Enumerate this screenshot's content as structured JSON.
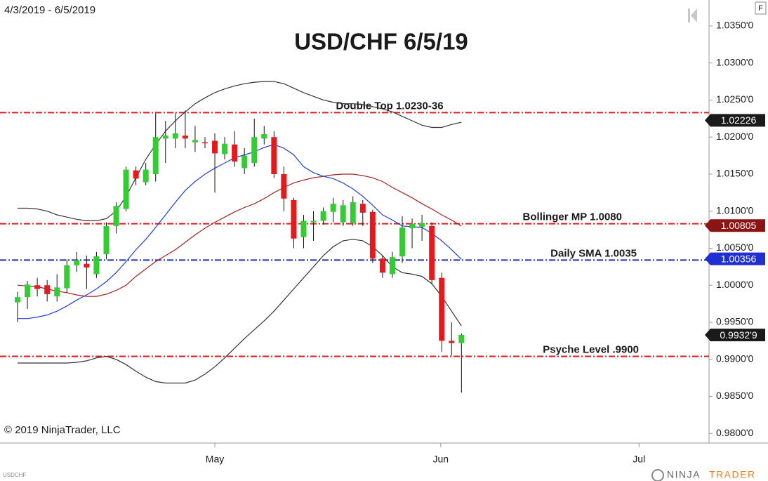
{
  "chart_data": {
    "type": "candlestick",
    "date_range": "4/3/2019 - 6/5/2019",
    "title": "USD/CHF 6/5/19",
    "copyright": "© 2019 NinjaTrader, LLC",
    "instrument": "USDCHF",
    "corner_button": "F",
    "logo": [
      "NINJA",
      "TRADER"
    ],
    "up_color": "#33cc33",
    "down_color": "#e8191c",
    "ohlc": {
      "open": [
        0.9977,
        0.9984,
        1.0,
        1.0,
        0.9985,
        0.9996,
        1.0027,
        1.0029,
        1.0015,
        1.0042,
        1.008,
        1.0103,
        1.0155,
        1.0139,
        1.015,
        1.0198,
        1.0198,
        1.0202,
        1.0193,
        1.0193,
        1.0195,
        1.0177,
        1.019,
        1.0158,
        1.0165,
        1.0198,
        1.02,
        1.015,
        1.0115,
        1.0065,
        1.0085,
        1.0087,
        1.0099,
        1.0085,
        1.0084,
        1.011,
        1.0099,
        1.0036,
        1.0015,
        1.0039,
        1.0077,
        1.0079,
        1.008,
        1.001,
        0.9925,
        0.9922
      ],
      "high": [
        0.9991,
        1.0006,
        1.001,
        1.0007,
        1.0015,
        1.0035,
        1.0045,
        1.004,
        1.0045,
        1.0085,
        1.0112,
        1.016,
        1.016,
        1.0165,
        1.0232,
        1.0222,
        1.0232,
        1.0236,
        1.0215,
        1.02,
        1.0205,
        1.02,
        1.0208,
        1.0185,
        1.0225,
        1.0215,
        1.0208,
        1.016,
        1.0118,
        1.0095,
        1.01,
        1.0105,
        1.0118,
        1.0115,
        1.012,
        1.0115,
        1.0102,
        1.004,
        1.0045,
        1.0093,
        1.009,
        1.0095,
        1.0085,
        1.0017,
        0.995,
        0.9935
      ],
      "low": [
        0.995,
        0.9968,
        0.9985,
        0.9978,
        0.9978,
        0.999,
        1.0018,
        0.9995,
        1.001,
        1.0035,
        1.007,
        1.01,
        1.0135,
        1.0135,
        1.014,
        1.0165,
        1.0185,
        1.0185,
        1.018,
        1.0185,
        1.0125,
        1.017,
        1.016,
        1.015,
        1.016,
        1.019,
        1.0145,
        1.01,
        1.005,
        1.005,
        1.006,
        1.0082,
        1.0085,
        1.008,
        1.008,
        1.008,
        1.003,
        1.001,
        1.001,
        1.003,
        1.005,
        1.006,
        1.0002,
        0.991,
        0.9905,
        0.9855
      ],
      "close": [
        0.9984,
        1.0001,
        0.9995,
        0.9988,
        0.9997,
        1.0027,
        1.0034,
        1.0024,
        1.0039,
        1.008,
        1.0107,
        1.0156,
        1.0144,
        1.0156,
        1.02,
        1.0202,
        1.0205,
        1.0198,
        1.0196,
        1.0192,
        1.0178,
        1.0191,
        1.0167,
        1.0175,
        1.02,
        1.0204,
        1.015,
        1.0117,
        1.0063,
        1.0087,
        1.0087,
        1.01,
        1.011,
        1.0108,
        1.0112,
        1.0098,
        1.0036,
        1.0017,
        1.0038,
        1.0078,
        1.0083,
        1.0084,
        1.0007,
        0.9925,
        0.9922,
        0.9933
      ]
    },
    "indicators": [
      {
        "color": "#333333",
        "values": [
          1.0104,
          1.0104,
          1.0103,
          1.01,
          1.0095,
          1.0092,
          1.0089,
          1.0087,
          1.0087,
          1.009,
          1.01,
          1.012,
          1.0145,
          1.017,
          1.019,
          1.0208,
          1.0222,
          1.0234,
          1.0245,
          1.0253,
          1.026,
          1.0265,
          1.0269,
          1.0272,
          1.0274,
          1.0275,
          1.0275,
          1.0272,
          1.0266,
          1.026,
          1.0255,
          1.025,
          1.0247,
          1.0245,
          1.0245,
          1.0244,
          1.0241,
          1.0238,
          1.0234,
          1.0228,
          1.0222,
          1.0216,
          1.0213,
          1.0213,
          1.0217,
          1.022
        ]
      },
      {
        "color": "#333333",
        "values": [
          0.9895,
          0.9895,
          0.9895,
          0.9895,
          0.9895,
          0.9895,
          0.9896,
          0.9898,
          0.9902,
          0.9904,
          0.99,
          0.9893,
          0.9884,
          0.9876,
          0.987,
          0.9868,
          0.9868,
          0.9868,
          0.9872,
          0.988,
          0.989,
          0.9902,
          0.9915,
          0.9928,
          0.994,
          0.9952,
          0.9965,
          0.998,
          0.9995,
          1.001,
          1.0025,
          1.004,
          1.0052,
          1.006,
          1.0062,
          1.006,
          1.0052,
          1.004,
          1.0025,
          1.0017,
          1.0015,
          1.0012,
          1.0002,
          0.9985,
          0.9965,
          0.9945
        ]
      },
      {
        "color": "#a0231e",
        "values": [
          1.0,
          0.9999,
          0.9998,
          0.9995,
          0.9992,
          0.999,
          0.9987,
          0.9985,
          0.9985,
          0.9988,
          0.9993,
          1.0,
          1.0012,
          1.0022,
          1.0032,
          1.004,
          1.0048,
          1.0058,
          1.0068,
          1.0077,
          1.0085,
          1.0092,
          1.0099,
          1.0105,
          1.011,
          1.0117,
          1.0125,
          1.0132,
          1.0138,
          1.0142,
          1.0145,
          1.0147,
          1.0149,
          1.015,
          1.015,
          1.0148,
          1.0145,
          1.014,
          1.0132,
          1.0125,
          1.0118,
          1.011,
          1.0103,
          1.0095,
          1.0088,
          1.008
        ]
      },
      {
        "color": "#1f3fd8",
        "values": [
          0.9955,
          0.9955,
          0.9957,
          0.996,
          0.9965,
          0.9972,
          0.998,
          0.9987,
          0.9995,
          1.0005,
          1.0017,
          1.0032,
          1.0048,
          1.0062,
          1.0078,
          1.0095,
          1.0112,
          1.0128,
          1.014,
          1.015,
          1.0158,
          1.0165,
          1.0172,
          1.0176,
          1.018,
          1.0186,
          1.019,
          1.0185,
          1.0176,
          1.016,
          1.0152,
          1.0147,
          1.0144,
          1.0138,
          1.013,
          1.012,
          1.0108,
          1.0095,
          1.0088,
          1.008,
          1.0079,
          1.0078,
          1.007,
          1.006,
          1.0048,
          1.0035
        ]
      }
    ],
    "levels": [
      {
        "label": "Double Top 1.0230-36",
        "value": 1.0233,
        "color": "#e8191c"
      },
      {
        "label": "Bollinger MP 1.0080",
        "value": 1.0083,
        "color": "#e8191c"
      },
      {
        "label": "Daily SMA 1.0035",
        "value": 1.0034,
        "color": "#1f2fb8"
      },
      {
        "label": "Psyche Level .9900",
        "value": 0.9904,
        "color": "#e8191c"
      }
    ],
    "price_markers": [
      {
        "value": 1.02226,
        "label": "1.02226",
        "color": "#1a1a1a"
      },
      {
        "value": 1.00805,
        "label": "1.00805",
        "color": "#8b1414"
      },
      {
        "value": 1.00356,
        "label": "1.00356",
        "color": "#1f2fd0"
      },
      {
        "value": 0.99329,
        "label": "0.9932'9",
        "color": "#1a1a1a"
      }
    ],
    "xlim": [
      -1.78,
      70.1
    ],
    "xticks": [
      {
        "value": 20,
        "label": "May"
      },
      {
        "value": 42.9,
        "label": "Jun"
      },
      {
        "value": 63,
        "label": "Jul"
      }
    ],
    "ylim": [
      0.9787,
      1.0385
    ],
    "yticks": [
      {
        "value": 0.98,
        "label": "0.9800'0"
      },
      {
        "value": 0.985,
        "label": "0.9850'0"
      },
      {
        "value": 0.99,
        "label": "0.9900'0"
      },
      {
        "value": 0.995,
        "label": "0.9950'0"
      },
      {
        "value": 1.0,
        "label": "1.0000'0"
      },
      {
        "value": 1.005,
        "label": "1.0050'0"
      },
      {
        "value": 1.01,
        "label": "1.0100'0"
      },
      {
        "value": 1.015,
        "label": "1.0150'0"
      },
      {
        "value": 1.02,
        "label": "1.0200'0"
      },
      {
        "value": 1.025,
        "label": "1.0250'0"
      },
      {
        "value": 1.03,
        "label": "1.0300'0"
      },
      {
        "value": 1.035,
        "label": "1.0350'0"
      }
    ]
  }
}
